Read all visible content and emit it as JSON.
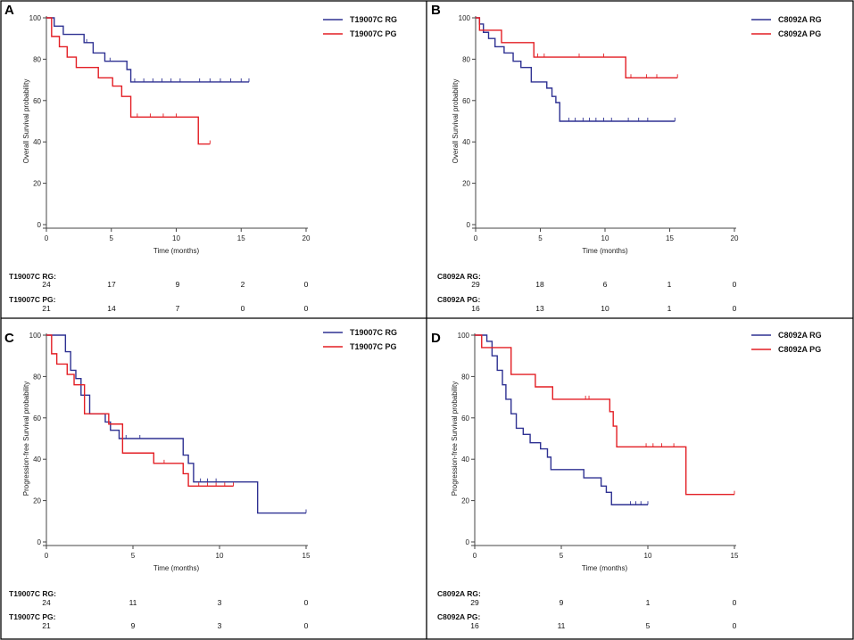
{
  "colors": {
    "rg": "#2e3192",
    "pg": "#e31e24"
  },
  "chart_data": [
    {
      "type": "line",
      "panel": "A",
      "xlabel": "Time (months)",
      "ylabel": "Overall Survival probability",
      "xlim": [
        0,
        20
      ],
      "ylim": [
        0,
        100
      ],
      "xticks": [
        "0",
        "5",
        "10",
        "15",
        "20"
      ],
      "yticks": [
        "0",
        "20",
        "40",
        "60",
        "80",
        "100"
      ],
      "series": [
        {
          "name": "T19007C RG",
          "color": "#2e3192",
          "x": [
            0,
            0.6,
            1.3,
            2.9,
            3.6,
            4.5,
            6.2,
            6.5,
            15.6
          ],
          "y": [
            100,
            96,
            92,
            88,
            83,
            79,
            75,
            69,
            69
          ],
          "censor_x": [
            3.1,
            4.9,
            6.8,
            7.5,
            8.2,
            8.9,
            9.6,
            10.3,
            11.8,
            12.6,
            13.4,
            14.2,
            15.0,
            15.6
          ]
        },
        {
          "name": "T19007C PG",
          "color": "#e31e24",
          "x": [
            0,
            0.4,
            1.0,
            1.6,
            2.3,
            4.0,
            5.1,
            5.8,
            6.5,
            11.7,
            12.6
          ],
          "y": [
            100,
            91,
            86,
            81,
            76,
            71,
            67,
            62,
            52,
            39,
            39
          ],
          "censor_x": [
            7.0,
            8.0,
            9.0,
            10.0,
            11.7,
            12.6
          ]
        }
      ],
      "risk_table": [
        {
          "label": "T19007C RG:",
          "values": [
            "24",
            "17",
            "9",
            "2",
            "0"
          ]
        },
        {
          "label": "T19007C PG:",
          "values": [
            "21",
            "14",
            "7",
            "0",
            "0"
          ]
        }
      ]
    },
    {
      "type": "line",
      "panel": "B",
      "xlabel": "Time (months)",
      "ylabel": "Overall Survival probability",
      "xlim": [
        0,
        20
      ],
      "ylim": [
        0,
        100
      ],
      "xticks": [
        "0",
        "5",
        "10",
        "15",
        "20"
      ],
      "yticks": [
        "0",
        "20",
        "40",
        "60",
        "80",
        "100"
      ],
      "series": [
        {
          "name": "C8092A RG",
          "color": "#2e3192",
          "x": [
            0,
            0.3,
            0.6,
            1.0,
            1.5,
            2.2,
            2.9,
            3.5,
            4.3,
            5.5,
            5.9,
            6.2,
            6.5,
            15.4
          ],
          "y": [
            100,
            97,
            93,
            90,
            86,
            83,
            79,
            76,
            69,
            66,
            62,
            59,
            50,
            50
          ],
          "censor_x": [
            7.2,
            7.7,
            8.3,
            8.8,
            9.3,
            9.9,
            10.5,
            11.8,
            12.6,
            13.3,
            15.4
          ]
        },
        {
          "name": "C8092A PG",
          "color": "#e31e24",
          "x": [
            0,
            0.3,
            0.7,
            2.0,
            4.5,
            11.6,
            15.6
          ],
          "y": [
            100,
            94,
            94,
            88,
            81,
            71,
            71
          ],
          "censor_x": [
            4.8,
            5.3,
            8.0,
            9.9,
            12.0,
            13.2,
            14.0,
            15.6
          ]
        }
      ],
      "risk_table": [
        {
          "label": "C8092A RG:",
          "values": [
            "29",
            "18",
            "6",
            "1",
            "0"
          ]
        },
        {
          "label": "C8092A PG:",
          "values": [
            "16",
            "13",
            "10",
            "1",
            "0"
          ]
        }
      ]
    },
    {
      "type": "line",
      "panel": "C",
      "xlabel": "Time (months)",
      "ylabel": "Progression-free Survival probability",
      "xlim": [
        0,
        15
      ],
      "ylim": [
        0,
        100
      ],
      "xticks": [
        "0",
        "5",
        "10",
        "15"
      ],
      "yticks": [
        "0",
        "20",
        "40",
        "60",
        "80",
        "100"
      ],
      "series": [
        {
          "name": "T19007C RG",
          "color": "#2e3192",
          "x": [
            0,
            1.1,
            1.4,
            1.7,
            2.0,
            2.5,
            3.4,
            3.7,
            4.2,
            7.9,
            8.2,
            8.5,
            12.2,
            15.0
          ],
          "y": [
            100,
            92,
            83,
            79,
            71,
            62,
            58,
            54,
            50,
            42,
            38,
            29,
            14,
            14
          ],
          "censor_x": [
            4.6,
            5.4,
            8.9,
            9.3,
            9.8,
            15.0
          ]
        },
        {
          "name": "T19007C PG",
          "color": "#e31e24",
          "x": [
            0,
            0.3,
            0.6,
            1.2,
            1.6,
            2.2,
            3.6,
            4.4,
            6.2,
            7.9,
            8.2,
            10.8
          ],
          "y": [
            100,
            91,
            86,
            81,
            76,
            62,
            57,
            43,
            38,
            33,
            27,
            27
          ],
          "censor_x": [
            6.8,
            8.8,
            9.3,
            9.8,
            10.3,
            10.8
          ]
        }
      ],
      "risk_table": [
        {
          "label": "T19007C RG:",
          "values": [
            "24",
            "11",
            "3",
            "0"
          ]
        },
        {
          "label": "T19007C PG:",
          "values": [
            "21",
            "9",
            "3",
            "0"
          ]
        }
      ]
    },
    {
      "type": "line",
      "panel": "D",
      "xlabel": "Time (months)",
      "ylabel": "Progression-free Survival probability",
      "xlim": [
        0,
        15
      ],
      "ylim": [
        0,
        100
      ],
      "xticks": [
        "0",
        "5",
        "10",
        "15"
      ],
      "yticks": [
        "0",
        "20",
        "40",
        "60",
        "80",
        "100"
      ],
      "series": [
        {
          "name": "C8092A RG",
          "color": "#2e3192",
          "x": [
            0,
            0.7,
            1.0,
            1.3,
            1.6,
            1.8,
            2.1,
            2.4,
            2.8,
            3.2,
            3.8,
            4.2,
            4.4,
            6.3,
            7.3,
            7.6,
            7.9,
            10.0
          ],
          "y": [
            100,
            97,
            90,
            83,
            76,
            69,
            62,
            55,
            52,
            48,
            45,
            41,
            35,
            31,
            27,
            24,
            18,
            18
          ],
          "censor_x": [
            9.0,
            9.3,
            9.6,
            10.0
          ]
        },
        {
          "name": "C8092A PG",
          "color": "#e31e24",
          "x": [
            0,
            0.4,
            2.1,
            3.5,
            4.5,
            7.8,
            8.0,
            8.2,
            12.2,
            15.0
          ],
          "y": [
            100,
            94,
            81,
            75,
            69,
            63,
            56,
            46,
            23,
            23
          ],
          "censor_x": [
            6.4,
            6.6,
            9.9,
            10.3,
            10.8,
            11.5,
            15.0
          ]
        }
      ],
      "risk_table": [
        {
          "label": "C8092A RG:",
          "values": [
            "29",
            "9",
            "1",
            "0"
          ]
        },
        {
          "label": "C8092A PG:",
          "values": [
            "16",
            "11",
            "5",
            "0"
          ]
        }
      ]
    }
  ]
}
